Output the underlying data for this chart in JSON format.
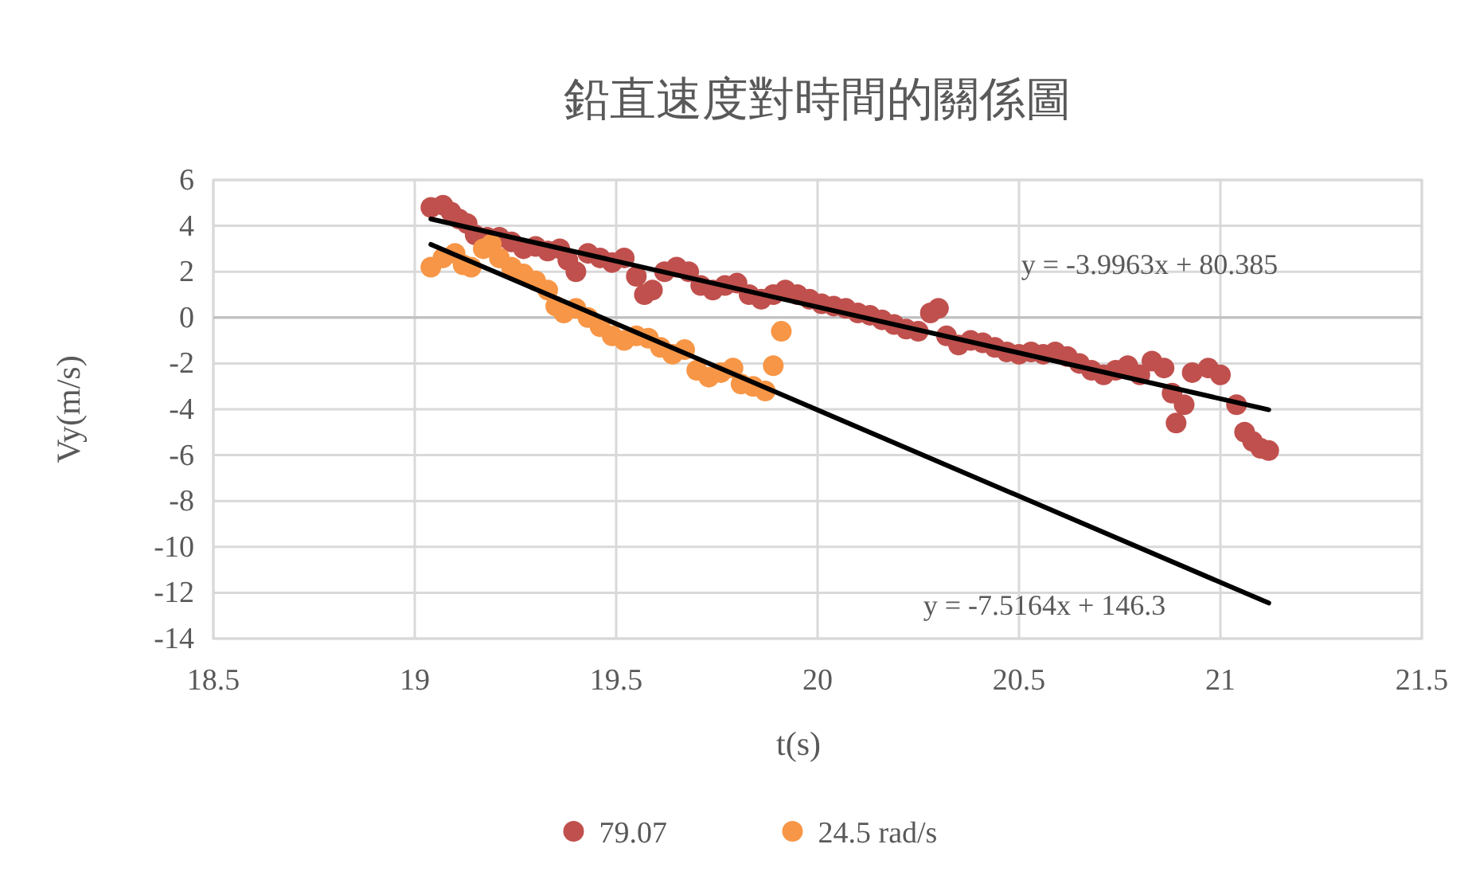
{
  "chart_data": {
    "type": "scatter",
    "title": "鉛直速度對時間的關係圖",
    "xlabel": "t(s)",
    "ylabel": "Vy(m/s)",
    "xlim": [
      18.5,
      21.5
    ],
    "xticks": [
      18.5,
      19,
      19.5,
      20,
      20.5,
      21,
      21.5
    ],
    "ylim": [
      -14,
      6
    ],
    "yticks": [
      -14,
      -12,
      -10,
      -8,
      -6,
      -4,
      -2,
      0,
      2,
      4,
      6
    ],
    "grid": true,
    "legend": "bottom",
    "series": [
      {
        "name": "79.07",
        "color": "#c0504d",
        "marker": "circle",
        "x": [
          19.04,
          19.07,
          19.09,
          19.11,
          19.13,
          19.15,
          19.18,
          19.21,
          19.24,
          19.27,
          19.3,
          19.33,
          19.36,
          19.38,
          19.4,
          19.43,
          19.46,
          19.49,
          19.52,
          19.55,
          19.57,
          19.59,
          19.62,
          19.65,
          19.68,
          19.71,
          19.74,
          19.77,
          19.8,
          19.83,
          19.86,
          19.89,
          19.92,
          19.95,
          19.98,
          20.01,
          20.04,
          20.07,
          20.1,
          20.13,
          20.16,
          20.19,
          20.22,
          20.25,
          20.28,
          20.3,
          20.32,
          20.35,
          20.38,
          20.41,
          20.44,
          20.47,
          20.5,
          20.53,
          20.56,
          20.59,
          20.62,
          20.65,
          20.68,
          20.71,
          20.74,
          20.77,
          20.8,
          20.83,
          20.86,
          20.88,
          20.89,
          20.91,
          20.93,
          20.97,
          21.0,
          21.04,
          21.06,
          21.08,
          21.1,
          21.12
        ],
        "values": [
          4.8,
          4.9,
          4.6,
          4.3,
          4.1,
          3.6,
          3.5,
          3.5,
          3.3,
          3.0,
          3.1,
          2.9,
          3.0,
          2.5,
          2.0,
          2.8,
          2.6,
          2.4,
          2.6,
          1.8,
          1.0,
          1.2,
          2.0,
          2.2,
          2.0,
          1.4,
          1.2,
          1.4,
          1.5,
          1.0,
          0.8,
          1.0,
          1.2,
          1.0,
          0.8,
          0.6,
          0.5,
          0.4,
          0.2,
          0.1,
          -0.1,
          -0.3,
          -0.5,
          -0.6,
          0.2,
          0.4,
          -0.8,
          -1.2,
          -1.0,
          -1.1,
          -1.3,
          -1.5,
          -1.6,
          -1.5,
          -1.6,
          -1.5,
          -1.7,
          -2.0,
          -2.3,
          -2.5,
          -2.3,
          -2.1,
          -2.5,
          -1.9,
          -2.2,
          -3.3,
          -4.6,
          -3.8,
          -2.4,
          -2.2,
          -2.5,
          -3.8,
          -5.0,
          -5.4,
          -5.7,
          -5.8
        ]
      },
      {
        "name": "24.5 rad/s",
        "color": "#f79646",
        "marker": "circle",
        "x": [
          19.04,
          19.07,
          19.1,
          19.12,
          19.14,
          19.17,
          19.19,
          19.21,
          19.24,
          19.27,
          19.3,
          19.33,
          19.35,
          19.37,
          19.4,
          19.43,
          19.46,
          19.49,
          19.52,
          19.55,
          19.58,
          19.61,
          19.64,
          19.67,
          19.7,
          19.73,
          19.76,
          19.79,
          19.81,
          19.84,
          19.87,
          19.89,
          19.91
        ],
        "values": [
          2.2,
          2.6,
          2.8,
          2.3,
          2.2,
          3.0,
          3.2,
          2.6,
          2.2,
          1.9,
          1.6,
          1.2,
          0.5,
          0.2,
          0.4,
          0.0,
          -0.4,
          -0.8,
          -1.0,
          -0.8,
          -0.9,
          -1.3,
          -1.6,
          -1.4,
          -2.3,
          -2.6,
          -2.4,
          -2.2,
          -2.9,
          -3.0,
          -3.2,
          -2.1,
          -0.6
        ]
      },
      {
        "type": "line",
        "marker": "none",
        "color": "#000000",
        "x": [
          19.04,
          21.12
        ],
        "values": [
          4.3,
          -4.02
        ]
      },
      {
        "type": "line",
        "marker": "none",
        "color": "#000000",
        "x": [
          19.04,
          21.12
        ],
        "values": [
          3.19,
          -12.45
        ]
      }
    ],
    "annotations": [
      "y = -3.9963x + 80.385",
      "y = -7.5164x + 146.3"
    ]
  }
}
